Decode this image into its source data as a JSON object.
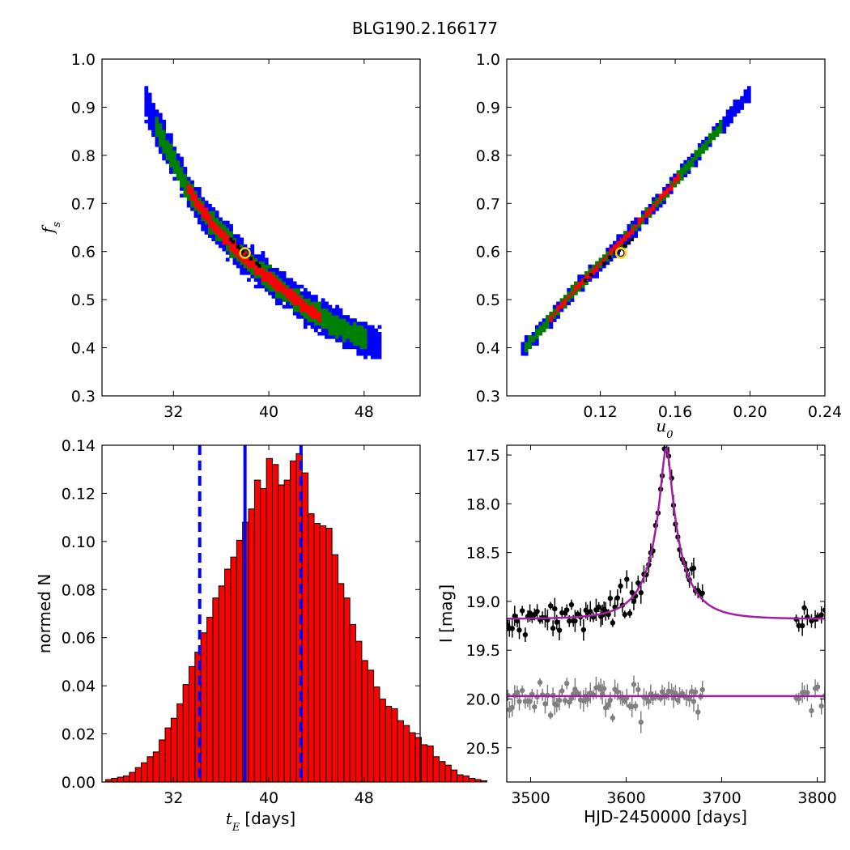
{
  "title": "BLG190.2.166177",
  "colors": {
    "blue": "#0000ff",
    "green": "#008000",
    "red": "#ff0000",
    "black": "#000000",
    "marker": "#ffd400",
    "bar_edge": "#000000",
    "model": "#a020a0",
    "gray": "#808080"
  },
  "chart_data": [
    {
      "type": "heatmap",
      "panel": "top-left",
      "xlabel": "",
      "ylabel": "f_s",
      "xlim": [
        26,
        52.7
      ],
      "ylim": [
        0.3,
        1.0
      ],
      "xticks": [
        32,
        40,
        48
      ],
      "yticks": [
        0.3,
        0.4,
        0.5,
        0.6,
        0.7,
        0.8,
        0.9,
        1.0
      ],
      "ridge": [
        [
          29.5,
          0.92
        ],
        [
          31.0,
          0.84
        ],
        [
          33.0,
          0.74
        ],
        [
          35.0,
          0.665
        ],
        [
          37.0,
          0.61
        ],
        [
          39.0,
          0.565
        ],
        [
          41.0,
          0.525
        ],
        [
          43.0,
          0.485
        ],
        [
          45.0,
          0.455
        ],
        [
          47.0,
          0.43
        ],
        [
          49.5,
          0.405
        ]
      ],
      "levels": [
        {
          "name": "3-sigma",
          "color": "blue",
          "halfwidth": 0.035,
          "range": [
            29.5,
            49.5
          ]
        },
        {
          "name": "2-sigma",
          "color": "green",
          "halfwidth": 0.022,
          "range": [
            30.5,
            48.3
          ]
        },
        {
          "name": "1-sigma",
          "color": "red",
          "halfwidth": 0.012,
          "range": [
            33.0,
            44.5
          ]
        }
      ],
      "best_points": [
        [
          37.0,
          0.62
        ],
        [
          37.4,
          0.61
        ],
        [
          37.6,
          0.605
        ],
        [
          37.8,
          0.6
        ],
        [
          38.2,
          0.59
        ],
        [
          38.5,
          0.585
        ],
        [
          39.0,
          0.575
        ],
        [
          39.2,
          0.57
        ],
        [
          36.8,
          0.625
        ]
      ],
      "best_fit": [
        38.0,
        0.597
      ]
    },
    {
      "type": "heatmap",
      "panel": "top-right",
      "xlabel": "u_0",
      "ylabel": "",
      "xlim": [
        0.07,
        0.24
      ],
      "ylim": [
        0.3,
        1.0
      ],
      "xticks": [
        0.12,
        0.16,
        0.2,
        0.24
      ],
      "yticks": [
        0.3,
        0.4,
        0.5,
        0.6,
        0.7,
        0.8,
        0.9,
        1.0
      ],
      "ridge": [
        [
          0.077,
          0.39
        ],
        [
          0.09,
          0.445
        ],
        [
          0.105,
          0.515
        ],
        [
          0.12,
          0.575
        ],
        [
          0.135,
          0.635
        ],
        [
          0.15,
          0.7
        ],
        [
          0.165,
          0.77
        ],
        [
          0.18,
          0.84
        ],
        [
          0.2,
          0.93
        ]
      ],
      "levels": [
        {
          "name": "3-sigma",
          "color": "blue",
          "halfwidth": 0.016,
          "range": [
            0.077,
            0.2
          ]
        },
        {
          "name": "2-sigma",
          "color": "green",
          "halfwidth": 0.011,
          "range": [
            0.08,
            0.186
          ]
        },
        {
          "name": "1-sigma",
          "color": "red",
          "halfwidth": 0.006,
          "range": [
            0.092,
            0.163
          ]
        }
      ],
      "best_points": [
        [
          0.122,
          0.575
        ],
        [
          0.125,
          0.588
        ],
        [
          0.128,
          0.598
        ],
        [
          0.13,
          0.603
        ],
        [
          0.133,
          0.611
        ],
        [
          0.135,
          0.618
        ],
        [
          0.137,
          0.625
        ],
        [
          0.112,
          0.54
        ],
        [
          0.115,
          0.552
        ]
      ],
      "best_fit": [
        0.131,
        0.597
      ]
    },
    {
      "type": "bar",
      "panel": "bottom-left",
      "xlabel": "t_E",
      "xlabel_unit": "[days]",
      "ylabel": "normed N",
      "xlim": [
        26,
        52.7
      ],
      "ylim": [
        0,
        0.14
      ],
      "xticks": [
        32,
        40,
        48
      ],
      "yticks": [
        0.0,
        0.02,
        0.04,
        0.06,
        0.08,
        0.1,
        0.12,
        0.14
      ],
      "bin_width": 0.5,
      "x_start": 26.3,
      "values": [
        0.001,
        0.0015,
        0.002,
        0.0025,
        0.004,
        0.006,
        0.008,
        0.0105,
        0.0125,
        0.0175,
        0.0225,
        0.0265,
        0.0325,
        0.0405,
        0.048,
        0.054,
        0.062,
        0.0685,
        0.0765,
        0.0815,
        0.0885,
        0.0935,
        0.1005,
        0.108,
        0.1135,
        0.1255,
        0.122,
        0.1345,
        0.132,
        0.1235,
        0.1255,
        0.1335,
        0.1365,
        0.1285,
        0.1115,
        0.1075,
        0.1065,
        0.1055,
        0.0945,
        0.0825,
        0.0765,
        0.0655,
        0.0585,
        0.0505,
        0.0465,
        0.0395,
        0.0345,
        0.0315,
        0.0305,
        0.0255,
        0.0235,
        0.0205,
        0.0185,
        0.0155,
        0.015,
        0.0105,
        0.0085,
        0.007,
        0.005,
        0.003,
        0.0025,
        0.0015,
        0.001,
        0.0005
      ],
      "median": 38.0,
      "lower": 34.2,
      "upper": 42.7
    },
    {
      "type": "scatter",
      "panel": "bottom-right",
      "xlabel": "HJD-2450000 [days]",
      "ylabel": "I [mag]",
      "xlim": [
        3475,
        3808
      ],
      "ylim": [
        20.85,
        17.4
      ],
      "xticks": [
        3500,
        3600,
        3700,
        3800
      ],
      "yticks": [
        17.5,
        18.0,
        18.5,
        19.0,
        19.5,
        20.0,
        20.5
      ],
      "model": {
        "t0": 3642,
        "u0": 0.131,
        "tE": 38.0,
        "fs": 0.597,
        "baseline": 19.18
      },
      "residual_baseline": 19.97
    }
  ]
}
